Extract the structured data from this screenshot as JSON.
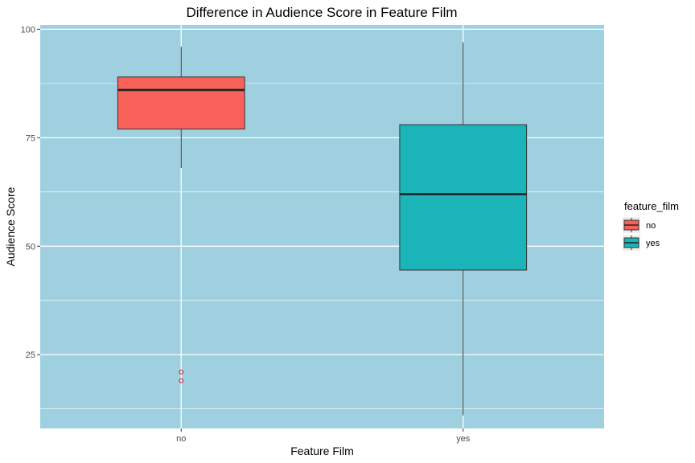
{
  "chart_data": {
    "type": "boxplot",
    "title": "Difference in Audience Score in Feature Film",
    "xlabel": "Feature Film",
    "ylabel": "Audience Score",
    "categories": [
      "no",
      "yes"
    ],
    "ylim": [
      8,
      101
    ],
    "yticks": [
      25,
      50,
      75,
      100
    ],
    "y_minor_ticks": [
      12.5,
      37.5,
      62.5,
      87.5
    ],
    "grid": true,
    "panel_background": "#9fd0e0",
    "grid_color": "#ffffff",
    "legend": {
      "title": "feature_film",
      "position": "right",
      "items": [
        {
          "label": "no",
          "color": "#f8615a"
        },
        {
          "label": "yes",
          "color": "#1bb5b9"
        }
      ]
    },
    "boxes": [
      {
        "category": "no",
        "whisker_low": 68,
        "q1": 77,
        "median": 86,
        "q3": 89,
        "whisker_high": 96,
        "outliers": [
          19,
          21
        ],
        "fill": "#f8615a"
      },
      {
        "category": "yes",
        "whisker_low": 11,
        "q1": 44.5,
        "median": 62,
        "q3": 78,
        "whisker_high": 97,
        "outliers": [],
        "fill": "#1bb5b9"
      }
    ],
    "outlier_color": "#e8202a"
  }
}
